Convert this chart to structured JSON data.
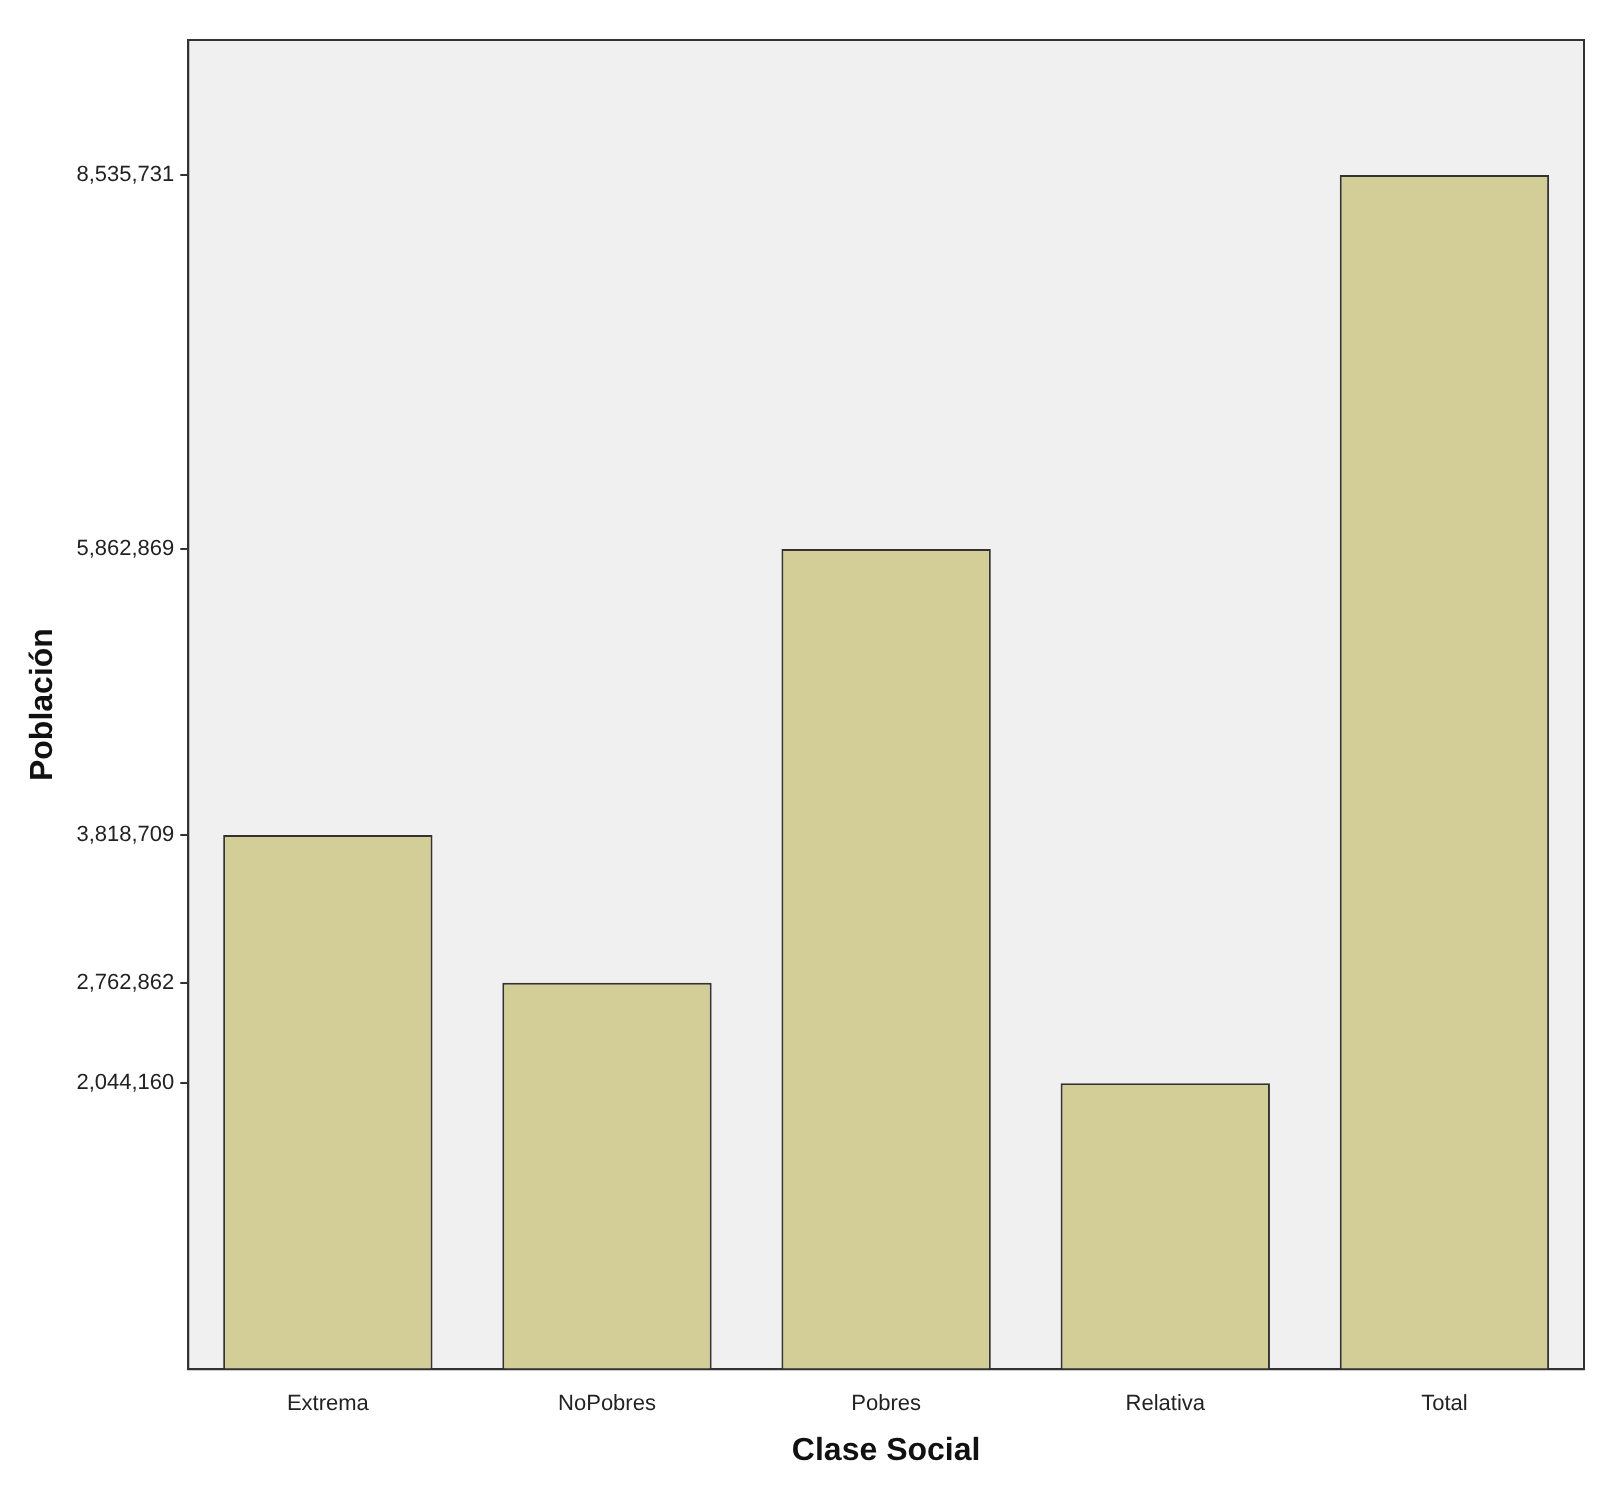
{
  "chart_data": {
    "type": "bar",
    "xlabel": "Clase Social",
    "ylabel": "Población",
    "categories": [
      "Extrema",
      "NoPobres",
      "Pobres",
      "Relativa",
      "Total"
    ],
    "values": [
      3818709,
      2762862,
      5862869,
      2044160,
      8535731
    ],
    "ylim": [
      0,
      9500000
    ],
    "yticks": [
      {
        "value": 2044160,
        "label": "2,044,160"
      },
      {
        "value": 2762862,
        "label": "2,762,862"
      },
      {
        "value": 3818709,
        "label": "3,818,709"
      },
      {
        "value": 5862869,
        "label": "5,862,869"
      },
      {
        "value": 8535731,
        "label": "8,535,731"
      }
    ],
    "color": "#d3ce97",
    "grid": false,
    "legend": false
  }
}
